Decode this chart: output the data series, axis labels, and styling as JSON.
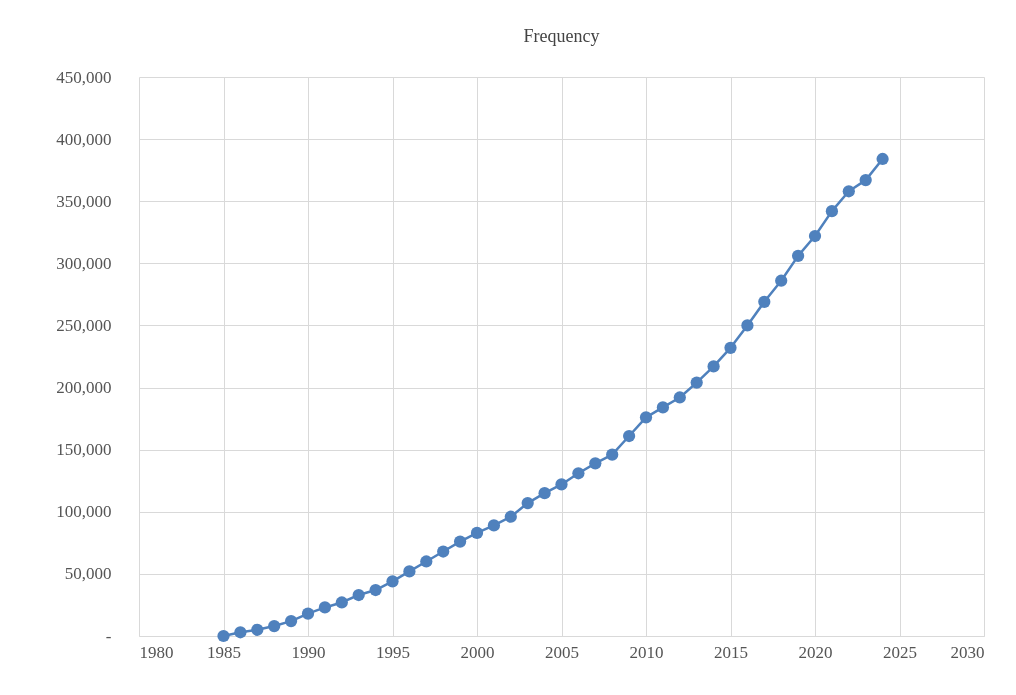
{
  "chart_data": {
    "type": "line",
    "title": "Frequency",
    "x": [
      1985,
      1986,
      1987,
      1988,
      1989,
      1990,
      1991,
      1992,
      1993,
      1994,
      1995,
      1996,
      1997,
      1998,
      1999,
      2000,
      2001,
      2002,
      2003,
      2004,
      2005,
      2006,
      2007,
      2008,
      2009,
      2010,
      2011,
      2012,
      2013,
      2014,
      2015,
      2016,
      2017,
      2018,
      2019,
      2020,
      2021,
      2022,
      2023,
      2024
    ],
    "series": [
      {
        "color": "#4f81bd",
        "values": [
          0,
          3000,
          5000,
          8000,
          12000,
          18000,
          23000,
          27000,
          33000,
          37000,
          44000,
          52000,
          60000,
          68000,
          76000,
          83000,
          89000,
          96000,
          107000,
          115000,
          122000,
          131000,
          139000,
          146000,
          161000,
          176000,
          184000,
          192000,
          204000,
          217000,
          232000,
          250000,
          269000,
          286000,
          306000,
          322000,
          342000,
          358000,
          367000,
          384000
        ]
      }
    ],
    "xlim": [
      1980,
      2030
    ],
    "xticks": [
      1980,
      1985,
      1990,
      1995,
      2000,
      2005,
      2010,
      2015,
      2020,
      2025,
      2030
    ],
    "ylim": [
      0,
      450000
    ],
    "yticks": [
      {
        "value": 0,
        "label": "-"
      },
      {
        "value": 50000,
        "label": "50,000"
      },
      {
        "value": 100000,
        "label": "100,000"
      },
      {
        "value": 150000,
        "label": "150,000"
      },
      {
        "value": 200000,
        "label": "200,000"
      },
      {
        "value": 250000,
        "label": "250,000"
      },
      {
        "value": 300000,
        "label": "300,000"
      },
      {
        "value": 350000,
        "label": "350,000"
      },
      {
        "value": 400000,
        "label": "400,000"
      },
      {
        "value": 450000,
        "label": "450,000"
      }
    ],
    "grid": true,
    "marker": "circle",
    "line_style": "solid"
  }
}
